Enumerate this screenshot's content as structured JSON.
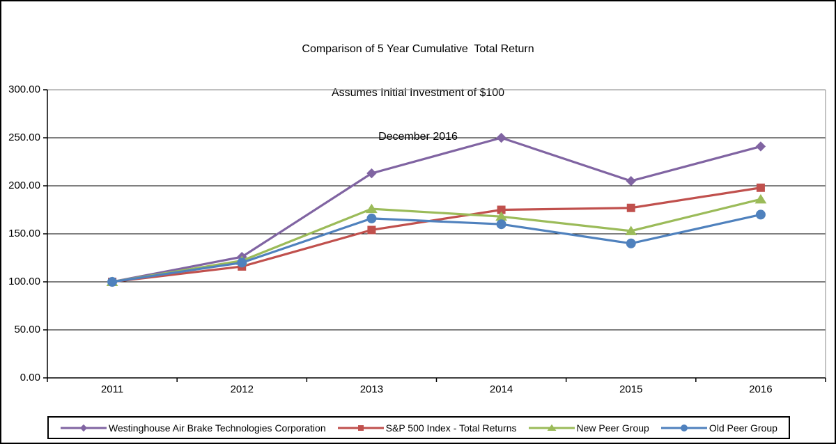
{
  "chart_data": {
    "type": "line",
    "title": "Comparison of 5 Year Cumulative  Total Return",
    "subtitle": "Assumes Initial Investment of $100",
    "subtitle2": "December 2016",
    "categories": [
      "2011",
      "2012",
      "2013",
      "2014",
      "2015",
      "2016"
    ],
    "series": [
      {
        "key": "westinghouse-air-brake",
        "name": "Westinghouse Air Brake Technologies Corporation",
        "color": "#8064A2",
        "marker": "diamond",
        "values": [
          100,
          126,
          213,
          250,
          205,
          241
        ]
      },
      {
        "key": "sp500-total-returns",
        "name": "S&P 500 Index - Total Returns",
        "color": "#C0504D",
        "marker": "square",
        "values": [
          100,
          116,
          154,
          175,
          177,
          198
        ]
      },
      {
        "key": "new-peer-group",
        "name": "New Peer Group",
        "color": "#9BBB59",
        "marker": "triangle",
        "values": [
          100,
          122,
          176,
          168,
          153,
          186
        ]
      },
      {
        "key": "old-peer-group",
        "name": "Old Peer Group",
        "color": "#4F81BD",
        "marker": "circle",
        "values": [
          100,
          120,
          166,
          160,
          140,
          170
        ]
      }
    ],
    "ylim": [
      0,
      300
    ],
    "ytick_step": 50,
    "ytick_labels": [
      "0.00",
      "50.00",
      "100.00",
      "150.00",
      "200.00",
      "250.00",
      "300.00"
    ],
    "grid": "horizontal",
    "legend_position": "bottom",
    "colors": {
      "axis": "#000000",
      "gridline": "#000000",
      "plot_border": "#9B9B9B",
      "text": "#000000",
      "background": "#FFFFFF"
    }
  }
}
